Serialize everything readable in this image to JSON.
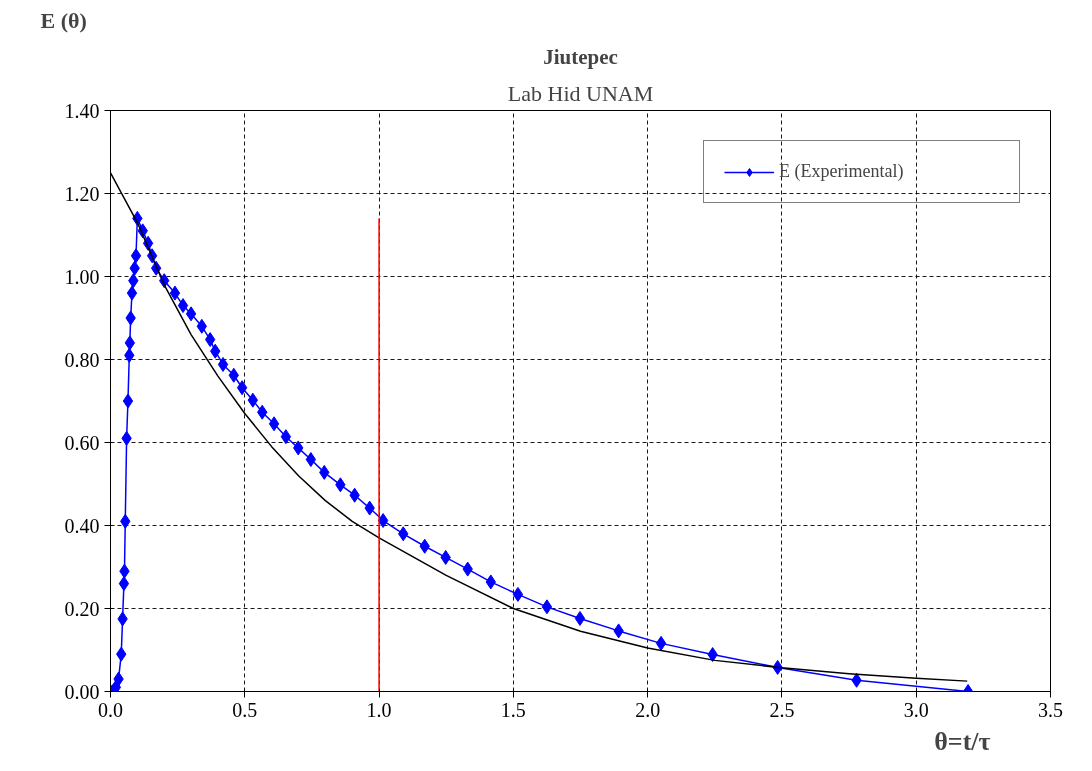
{
  "chart_data": {
    "type": "line",
    "title": "Jiutepec",
    "subtitle": "Lab Hid UNAM",
    "xlabel": "θ=t/τ",
    "ylabel": "E (θ)",
    "xlim": [
      0,
      3.5
    ],
    "ylim": [
      0,
      1.4
    ],
    "xticks": [
      {
        "value": 0,
        "label": "0.0"
      },
      {
        "value": 0.5,
        "label": "0.5"
      },
      {
        "value": 1,
        "label": "1.0"
      },
      {
        "value": 1.5,
        "label": "1.5"
      },
      {
        "value": 2,
        "label": "2.0"
      },
      {
        "value": 2.5,
        "label": "2.5"
      },
      {
        "value": 3,
        "label": "3.0"
      },
      {
        "value": 3.5,
        "label": "3.5"
      }
    ],
    "yticks": [
      {
        "value": 0,
        "label": "0.00"
      },
      {
        "value": 0.2,
        "label": "0.20"
      },
      {
        "value": 0.4,
        "label": "0.40"
      },
      {
        "value": 0.6,
        "label": "0.60"
      },
      {
        "value": 0.8,
        "label": "0.80"
      },
      {
        "value": 1.0,
        "label": "1.00"
      },
      {
        "value": 1.2,
        "label": "1.20"
      },
      {
        "value": 1.4,
        "label": "1.40"
      }
    ],
    "grid": true,
    "legend": "top right",
    "series": [
      {
        "name": "E (Experimental)",
        "color": "#0000ff",
        "marker": "diamond",
        "x": [
          0.0,
          0.01,
          0.02,
          0.03,
          0.04,
          0.045,
          0.05,
          0.052,
          0.055,
          0.06,
          0.065,
          0.07,
          0.072,
          0.075,
          0.08,
          0.085,
          0.09,
          0.095,
          0.1,
          0.12,
          0.14,
          0.155,
          0.17,
          0.2,
          0.24,
          0.27,
          0.3,
          0.34,
          0.371,
          0.39,
          0.419,
          0.459,
          0.49,
          0.53,
          0.565,
          0.609,
          0.653,
          0.699,
          0.746,
          0.796,
          0.856,
          0.909,
          0.965,
          1.015,
          1.09,
          1.17,
          1.248,
          1.33,
          1.416,
          1.517,
          1.625,
          1.748,
          1.892,
          2.05,
          2.242,
          2.484,
          2.778,
          3.193
        ],
        "values": [
          0.0,
          0.0,
          0.01,
          0.03,
          0.09,
          0.175,
          0.26,
          0.29,
          0.41,
          0.61,
          0.7,
          0.81,
          0.84,
          0.9,
          0.96,
          0.99,
          1.02,
          1.05,
          1.14,
          1.11,
          1.08,
          1.05,
          1.02,
          0.99,
          0.96,
          0.93,
          0.91,
          0.88,
          0.848,
          0.82,
          0.788,
          0.762,
          0.732,
          0.702,
          0.673,
          0.645,
          0.614,
          0.587,
          0.559,
          0.528,
          0.498,
          0.473,
          0.442,
          0.412,
          0.38,
          0.35,
          0.323,
          0.295,
          0.264,
          0.234,
          0.204,
          0.176,
          0.146,
          0.116,
          0.089,
          0.058,
          0.027,
          0.0
        ]
      },
      {
        "color": "#000000",
        "marker": "none",
        "x": [
          0,
          0.1,
          0.2,
          0.3,
          0.4,
          0.5,
          0.6,
          0.7,
          0.8,
          0.9,
          1.0,
          1.25,
          1.5,
          1.75,
          2.0,
          2.25,
          2.5,
          2.75,
          3.0,
          3.19
        ],
        "values": [
          1.25,
          1.13,
          0.98,
          0.86,
          0.76,
          0.67,
          0.59,
          0.52,
          0.46,
          0.41,
          0.37,
          0.28,
          0.2,
          0.145,
          0.105,
          0.075,
          0.057,
          0.043,
          0.032,
          0.025
        ]
      },
      {
        "color": "#ff0000",
        "marker": "none",
        "x": [
          1.0,
          1.0
        ],
        "values": [
          0.0,
          1.14
        ]
      }
    ]
  }
}
